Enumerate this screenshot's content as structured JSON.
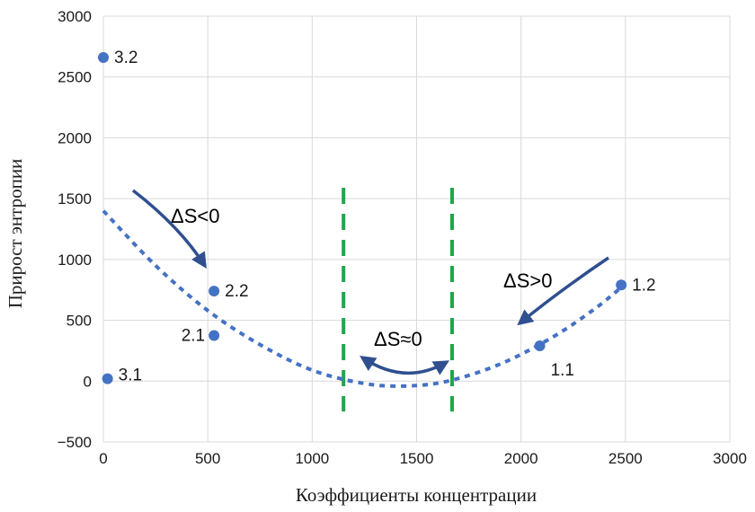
{
  "chart_data": {
    "type": "scatter",
    "xlabel": "Коэффициенты концентрации",
    "ylabel": "Прирост энтропии",
    "xlim": [
      0,
      3000
    ],
    "ylim": [
      -500,
      3000
    ],
    "x_ticks": [
      "0",
      "500",
      "1000",
      "1500",
      "2000",
      "2500",
      "3000"
    ],
    "y_ticks": [
      "−500",
      "0",
      "500",
      "1000",
      "1500",
      "2000",
      "2500",
      "3000"
    ],
    "grid": true,
    "points": [
      {
        "label": "3.2",
        "x": 0,
        "y": 2660
      },
      {
        "label": "2.2",
        "x": 530,
        "y": 740
      },
      {
        "label": "2.1",
        "x": 530,
        "y": 375
      },
      {
        "label": "3.1",
        "x": 20,
        "y": 20
      },
      {
        "label": "1.1",
        "x": 2090,
        "y": 290
      },
      {
        "label": "1.2",
        "x": 2480,
        "y": 790
      }
    ],
    "trend_curve": {
      "style": "dotted",
      "x": [
        0,
        250,
        500,
        750,
        1000,
        1250,
        1450,
        1650,
        1900,
        2150,
        2350,
        2480
      ],
      "y": [
        1400,
        950,
        580,
        300,
        90,
        -20,
        -40,
        0,
        140,
        360,
        590,
        770
      ]
    },
    "vertical_lines": {
      "style": "dashed",
      "x": [
        1150,
        1670
      ],
      "color": "#1fa64a"
    },
    "annotations": [
      {
        "text": "ΔS<0"
      },
      {
        "text": "ΔS≈0"
      },
      {
        "text": "ΔS>0"
      }
    ],
    "colors": {
      "points": "#4472c4",
      "curve": "#4472c4",
      "arrows": "#2f4f8f",
      "grid": "#d9d9d9"
    }
  }
}
